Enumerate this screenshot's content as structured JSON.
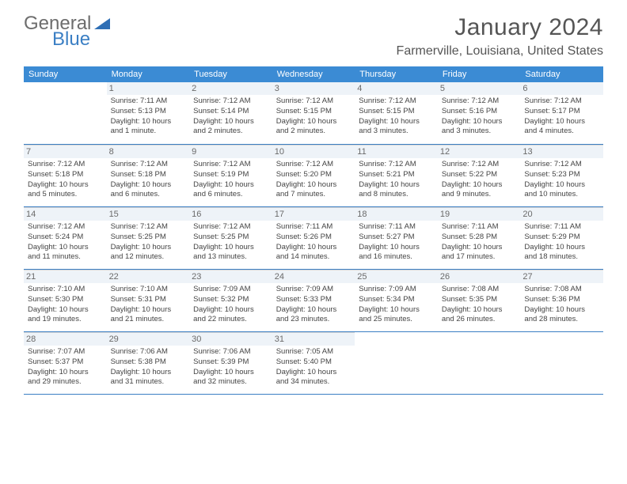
{
  "logo": {
    "part1": "General",
    "part2": "Blue"
  },
  "title": "January 2024",
  "location": "Farmerville, Louisiana, United States",
  "dayNames": [
    "Sunday",
    "Monday",
    "Tuesday",
    "Wednesday",
    "Thursday",
    "Friday",
    "Saturday"
  ],
  "colors": {
    "headerBg": "#3b8bd4",
    "accent": "#3b7fc4",
    "dayNumBg": "#eef3f8",
    "text": "#444444"
  },
  "weeks": [
    [
      {
        "n": "",
        "sr": "",
        "ss": "",
        "dl": ""
      },
      {
        "n": "1",
        "sr": "Sunrise: 7:11 AM",
        "ss": "Sunset: 5:13 PM",
        "dl": "Daylight: 10 hours and 1 minute."
      },
      {
        "n": "2",
        "sr": "Sunrise: 7:12 AM",
        "ss": "Sunset: 5:14 PM",
        "dl": "Daylight: 10 hours and 2 minutes."
      },
      {
        "n": "3",
        "sr": "Sunrise: 7:12 AM",
        "ss": "Sunset: 5:15 PM",
        "dl": "Daylight: 10 hours and 2 minutes."
      },
      {
        "n": "4",
        "sr": "Sunrise: 7:12 AM",
        "ss": "Sunset: 5:15 PM",
        "dl": "Daylight: 10 hours and 3 minutes."
      },
      {
        "n": "5",
        "sr": "Sunrise: 7:12 AM",
        "ss": "Sunset: 5:16 PM",
        "dl": "Daylight: 10 hours and 3 minutes."
      },
      {
        "n": "6",
        "sr": "Sunrise: 7:12 AM",
        "ss": "Sunset: 5:17 PM",
        "dl": "Daylight: 10 hours and 4 minutes."
      }
    ],
    [
      {
        "n": "7",
        "sr": "Sunrise: 7:12 AM",
        "ss": "Sunset: 5:18 PM",
        "dl": "Daylight: 10 hours and 5 minutes."
      },
      {
        "n": "8",
        "sr": "Sunrise: 7:12 AM",
        "ss": "Sunset: 5:18 PM",
        "dl": "Daylight: 10 hours and 6 minutes."
      },
      {
        "n": "9",
        "sr": "Sunrise: 7:12 AM",
        "ss": "Sunset: 5:19 PM",
        "dl": "Daylight: 10 hours and 6 minutes."
      },
      {
        "n": "10",
        "sr": "Sunrise: 7:12 AM",
        "ss": "Sunset: 5:20 PM",
        "dl": "Daylight: 10 hours and 7 minutes."
      },
      {
        "n": "11",
        "sr": "Sunrise: 7:12 AM",
        "ss": "Sunset: 5:21 PM",
        "dl": "Daylight: 10 hours and 8 minutes."
      },
      {
        "n": "12",
        "sr": "Sunrise: 7:12 AM",
        "ss": "Sunset: 5:22 PM",
        "dl": "Daylight: 10 hours and 9 minutes."
      },
      {
        "n": "13",
        "sr": "Sunrise: 7:12 AM",
        "ss": "Sunset: 5:23 PM",
        "dl": "Daylight: 10 hours and 10 minutes."
      }
    ],
    [
      {
        "n": "14",
        "sr": "Sunrise: 7:12 AM",
        "ss": "Sunset: 5:24 PM",
        "dl": "Daylight: 10 hours and 11 minutes."
      },
      {
        "n": "15",
        "sr": "Sunrise: 7:12 AM",
        "ss": "Sunset: 5:25 PM",
        "dl": "Daylight: 10 hours and 12 minutes."
      },
      {
        "n": "16",
        "sr": "Sunrise: 7:12 AM",
        "ss": "Sunset: 5:25 PM",
        "dl": "Daylight: 10 hours and 13 minutes."
      },
      {
        "n": "17",
        "sr": "Sunrise: 7:11 AM",
        "ss": "Sunset: 5:26 PM",
        "dl": "Daylight: 10 hours and 14 minutes."
      },
      {
        "n": "18",
        "sr": "Sunrise: 7:11 AM",
        "ss": "Sunset: 5:27 PM",
        "dl": "Daylight: 10 hours and 16 minutes."
      },
      {
        "n": "19",
        "sr": "Sunrise: 7:11 AM",
        "ss": "Sunset: 5:28 PM",
        "dl": "Daylight: 10 hours and 17 minutes."
      },
      {
        "n": "20",
        "sr": "Sunrise: 7:11 AM",
        "ss": "Sunset: 5:29 PM",
        "dl": "Daylight: 10 hours and 18 minutes."
      }
    ],
    [
      {
        "n": "21",
        "sr": "Sunrise: 7:10 AM",
        "ss": "Sunset: 5:30 PM",
        "dl": "Daylight: 10 hours and 19 minutes."
      },
      {
        "n": "22",
        "sr": "Sunrise: 7:10 AM",
        "ss": "Sunset: 5:31 PM",
        "dl": "Daylight: 10 hours and 21 minutes."
      },
      {
        "n": "23",
        "sr": "Sunrise: 7:09 AM",
        "ss": "Sunset: 5:32 PM",
        "dl": "Daylight: 10 hours and 22 minutes."
      },
      {
        "n": "24",
        "sr": "Sunrise: 7:09 AM",
        "ss": "Sunset: 5:33 PM",
        "dl": "Daylight: 10 hours and 23 minutes."
      },
      {
        "n": "25",
        "sr": "Sunrise: 7:09 AM",
        "ss": "Sunset: 5:34 PM",
        "dl": "Daylight: 10 hours and 25 minutes."
      },
      {
        "n": "26",
        "sr": "Sunrise: 7:08 AM",
        "ss": "Sunset: 5:35 PM",
        "dl": "Daylight: 10 hours and 26 minutes."
      },
      {
        "n": "27",
        "sr": "Sunrise: 7:08 AM",
        "ss": "Sunset: 5:36 PM",
        "dl": "Daylight: 10 hours and 28 minutes."
      }
    ],
    [
      {
        "n": "28",
        "sr": "Sunrise: 7:07 AM",
        "ss": "Sunset: 5:37 PM",
        "dl": "Daylight: 10 hours and 29 minutes."
      },
      {
        "n": "29",
        "sr": "Sunrise: 7:06 AM",
        "ss": "Sunset: 5:38 PM",
        "dl": "Daylight: 10 hours and 31 minutes."
      },
      {
        "n": "30",
        "sr": "Sunrise: 7:06 AM",
        "ss": "Sunset: 5:39 PM",
        "dl": "Daylight: 10 hours and 32 minutes."
      },
      {
        "n": "31",
        "sr": "Sunrise: 7:05 AM",
        "ss": "Sunset: 5:40 PM",
        "dl": "Daylight: 10 hours and 34 minutes."
      },
      {
        "n": "",
        "sr": "",
        "ss": "",
        "dl": ""
      },
      {
        "n": "",
        "sr": "",
        "ss": "",
        "dl": ""
      },
      {
        "n": "",
        "sr": "",
        "ss": "",
        "dl": ""
      }
    ]
  ]
}
